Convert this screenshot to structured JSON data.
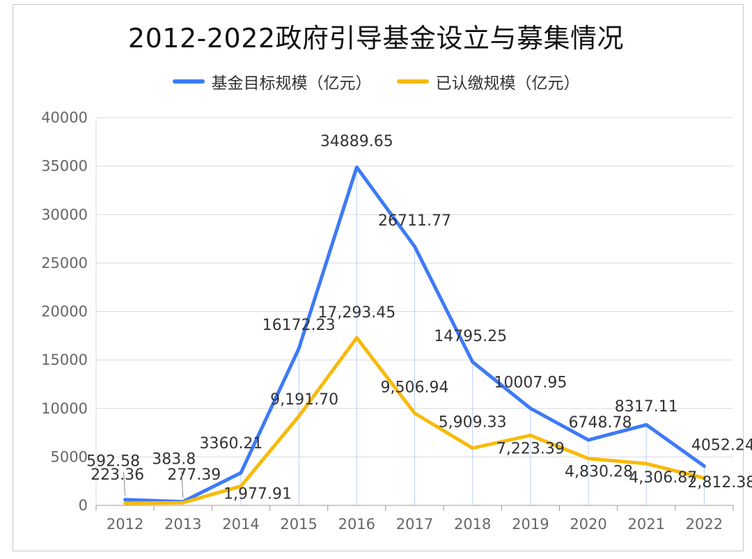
{
  "chart_data": {
    "type": "line",
    "title": "2012-2022政府引导基金设立与募集情况",
    "categories": [
      "2012",
      "2013",
      "2014",
      "2015",
      "2016",
      "2017",
      "2018",
      "2019",
      "2020",
      "2021",
      "2022"
    ],
    "series": [
      {
        "name": "基金目标规模（亿元）",
        "color": "#3D7AF5",
        "values": [
          592.58,
          383.8,
          3360.21,
          16172.23,
          34889.65,
          26711.77,
          14795.25,
          10007.95,
          6748.78,
          8317.11,
          4052.24
        ],
        "labels": [
          "592.58",
          "383.8",
          "3360.21",
          "16172.23",
          "34889.65",
          "26711.77",
          "14795.25",
          "10007.95",
          "6748.78",
          "8317.11",
          "4052.24"
        ]
      },
      {
        "name": "已认缴规模（亿元）",
        "color": "#F7BA0B",
        "values": [
          223.36,
          277.39,
          1977.91,
          9191.7,
          17293.45,
          9506.94,
          5909.33,
          7223.39,
          4830.28,
          4306.87,
          2812.38
        ],
        "labels": [
          "223.36",
          "277.39",
          "1,977.91",
          "9,191.70",
          "17,293.45",
          "9,506.94",
          "5,909.33",
          "7,223.39",
          "4,830.28",
          "4,306.87",
          "2,812.38"
        ]
      }
    ],
    "ylim": [
      0,
      40000
    ],
    "yticks": [
      0,
      5000,
      10000,
      15000,
      20000,
      25000,
      30000,
      35000,
      40000
    ],
    "grid": true,
    "legend_position": "top"
  }
}
